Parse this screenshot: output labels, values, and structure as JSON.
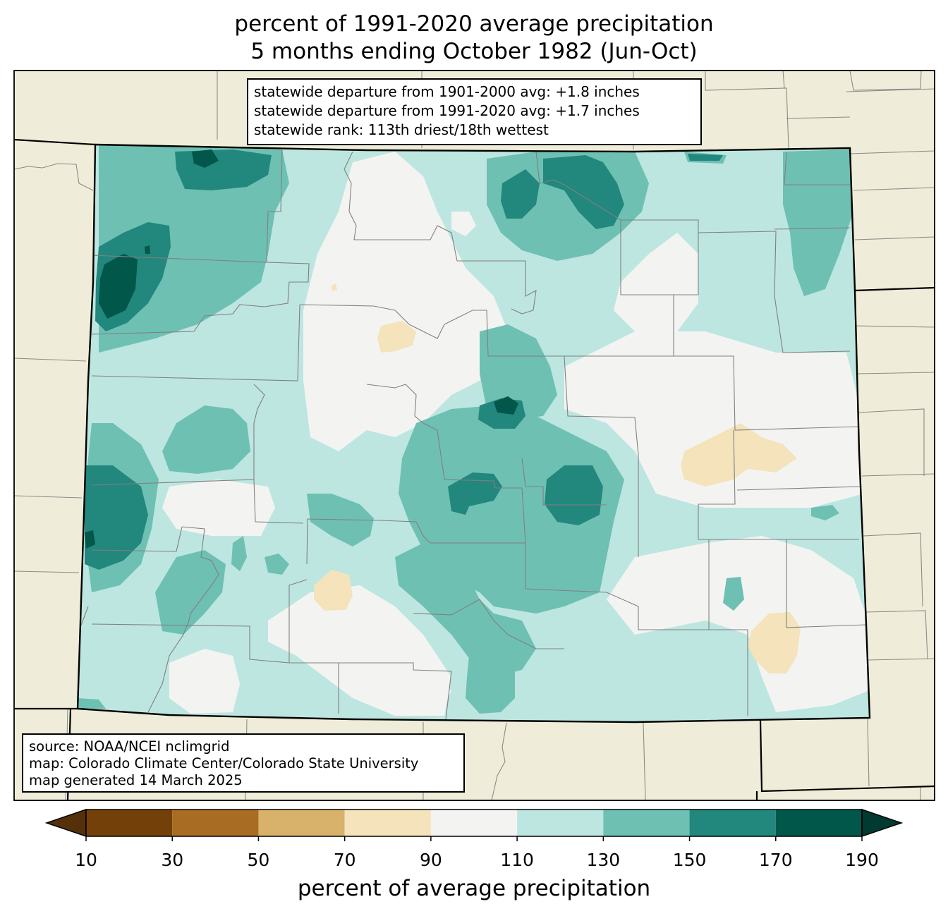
{
  "title": {
    "line1": "percent of 1991-2020 average precipitation",
    "line2": "5 months ending October 1982 (Jun-Oct)"
  },
  "stats": {
    "departure_1901_2000": "statewide departure from 1901-2000 avg: +1.8 inches",
    "departure_1991_2020": "statewide departure from 1991-2020 avg: +1.7 inches",
    "rank": "statewide rank: 113th driest/18th wettest"
  },
  "source": {
    "line1": "source: NOAA/NCEI nclimgrid",
    "line2": "map: Colorado Climate Center/Colorado State University",
    "line3": "map generated 14 March 2025"
  },
  "colorbar": {
    "label": "percent of average precipitation",
    "ticks": [
      "10",
      "30",
      "50",
      "70",
      "90",
      "110",
      "130",
      "150",
      "170",
      "190"
    ],
    "tick_values": [
      10,
      30,
      50,
      70,
      90,
      110,
      130,
      150,
      170,
      190
    ],
    "colors": [
      "#744009",
      "#a86c22",
      "#d8b26b",
      "#f4e3bb",
      "#f3f4f2",
      "#bde6e0",
      "#6ec0b3",
      "#22877d",
      "#00574a"
    ],
    "under_color": "#553109",
    "over_color": "#003a30",
    "extend": "both"
  },
  "map": {
    "background_color": "#efedd9",
    "state": "Colorado"
  }
}
